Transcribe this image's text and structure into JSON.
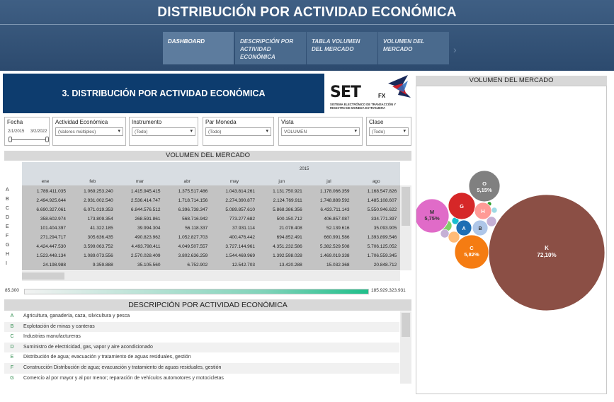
{
  "header": {
    "title": "DISTRIBUCIÓN POR ACTIVIDAD ECONÓMICA",
    "tabs": [
      {
        "label": "DASHBOARD",
        "active": true
      },
      {
        "label": "DESCRIPCIÓN POR ACTIVIDAD ECONÓMICA",
        "active": false
      },
      {
        "label": "TABLA VOLUMEN DEL MERCADO",
        "active": false
      },
      {
        "label": "VOLUMEN DEL MERCADO",
        "active": false
      }
    ],
    "next_icon": "chevron-right-icon"
  },
  "banner": {
    "title": "3. DISTRIBUCIÓN POR ACTIVIDAD ECONÓMICA"
  },
  "logo": {
    "word": "SET",
    "suffix": "FX",
    "subtitle": "SISTEMA ELECTRÓNICO DE TRANSACCIÓN Y REGISTRO DE MONEDA EXTRANJERA"
  },
  "filters": {
    "fecha": {
      "label": "Fecha",
      "from": "2/1/2015",
      "to": "3/2/2022"
    },
    "actividad": {
      "label": "Actividad Económica",
      "value": "(Valores múltiples)"
    },
    "instrumento": {
      "label": "Instrumento",
      "value": "(Todo)"
    },
    "moneda": {
      "label": "Par Moneda",
      "value": "(Todo)"
    },
    "vista": {
      "label": "Vista",
      "value": "VOLUMEN"
    },
    "clase": {
      "label": "Clase",
      "value": "(Todo)"
    }
  },
  "table": {
    "title": "VOLUMEN DEL MERCADO",
    "year": "2015",
    "months": [
      "ene",
      "feb",
      "mar",
      "abr",
      "may",
      "jun",
      "jul",
      "ago"
    ],
    "rows": [
      {
        "letter": "A",
        "values": [
          "1.789.411.035",
          "1.069.253.240",
          "1.415.945.415",
          "1.375.517.486",
          "1.043.814.261",
          "1.131.750.921",
          "1.178.066.359",
          "1.168.547.826"
        ]
      },
      {
        "letter": "B",
        "values": [
          "2.494.925.644",
          "2.931.002.540",
          "2.536.414.747",
          "1.718.714.156",
          "2.274.390.877",
          "2.124.769.911",
          "1.748.889.592",
          "1.485.108.607"
        ]
      },
      {
        "letter": "C",
        "values": [
          "6.690.327.061",
          "6.071.019.353",
          "6.844.576.512",
          "6.396.738.347",
          "5.089.857.610",
          "5.868.386.356",
          "6.433.711.143",
          "5.550.946.622"
        ]
      },
      {
        "letter": "D",
        "values": [
          "358.602.974",
          "173.809.354",
          "268.591.861",
          "568.716.942",
          "773.277.682",
          "500.150.712",
          "406.857.087",
          "334.771.397"
        ]
      },
      {
        "letter": "E",
        "values": [
          "101.404.397",
          "41.322.185",
          "39.994.304",
          "56.118.337",
          "37.931.114",
          "21.078.408",
          "52.139.616",
          "35.093.905"
        ]
      },
      {
        "letter": "F",
        "values": [
          "271.294.717",
          "305.636.435",
          "490.823.962",
          "1.052.827.703",
          "400.476.442",
          "694.852.491",
          "660.991.586",
          "1.393.899.546"
        ]
      },
      {
        "letter": "G",
        "values": [
          "4.424.447.530",
          "3.599.063.752",
          "4.493.798.411",
          "4.049.507.557",
          "3.727.144.961",
          "4.351.232.586",
          "5.382.529.508",
          "5.706.125.052"
        ]
      },
      {
        "letter": "H",
        "values": [
          "1.523.448.134",
          "1.089.073.556",
          "2.570.028.409",
          "3.802.636.259",
          "1.544.469.969",
          "1.392.598.028",
          "1.469.019.338",
          "1.706.559.345"
        ]
      },
      {
        "letter": "I",
        "values": [
          "24.198.988",
          "9.359.888",
          "35.105.560",
          "6.752.902",
          "12.542.703",
          "13.420.288",
          "15.032.368",
          "20.848.712"
        ]
      }
    ],
    "legend_min": "85.300",
    "legend_max": "185.929.323.931"
  },
  "description": {
    "title": "DESCRIPCIÓN POR ACTIVIDAD ECONÓMICA",
    "items": [
      {
        "letter": "A",
        "text": "Agricultura, ganadería, caza, silvicultura y pesca"
      },
      {
        "letter": "B",
        "text": "Explotación de minas y canteras"
      },
      {
        "letter": "C",
        "text": "Industrias manufactureras"
      },
      {
        "letter": "D",
        "text": "Suministro de electricidad, gas, vapor y aire acondicionado"
      },
      {
        "letter": "E",
        "text": "Distribución de agua; evacuación y tratamiento de aguas residuales, gestión"
      },
      {
        "letter": "F",
        "text": "Construcción  Distribución de agua; evacuación y tratamiento de aguas residuales, gestión"
      },
      {
        "letter": "G",
        "text": "Comercio al por mayor y al por menor; reparación de vehículos automotores y motocicletas"
      }
    ]
  },
  "bubble_chart": {
    "title": "VOLUMEN DEL MERCADO",
    "bubbles": [
      {
        "label": "K",
        "pct": "72,10%",
        "color": "#8b4f45"
      },
      {
        "label": "M",
        "pct": "5,75%",
        "color": "#e06bc8"
      },
      {
        "label": "C",
        "pct": "5,82%",
        "color": "#f57c12"
      },
      {
        "label": "O",
        "pct": "5,15%",
        "color": "#808080"
      },
      {
        "label": "G",
        "pct": "",
        "color": "#d62728"
      },
      {
        "label": "H",
        "pct": "",
        "color": "#ff9a96"
      },
      {
        "label": "A",
        "pct": "",
        "color": "#1f6fb4"
      },
      {
        "label": "B",
        "pct": "",
        "color": "#aec6e8"
      }
    ]
  }
}
